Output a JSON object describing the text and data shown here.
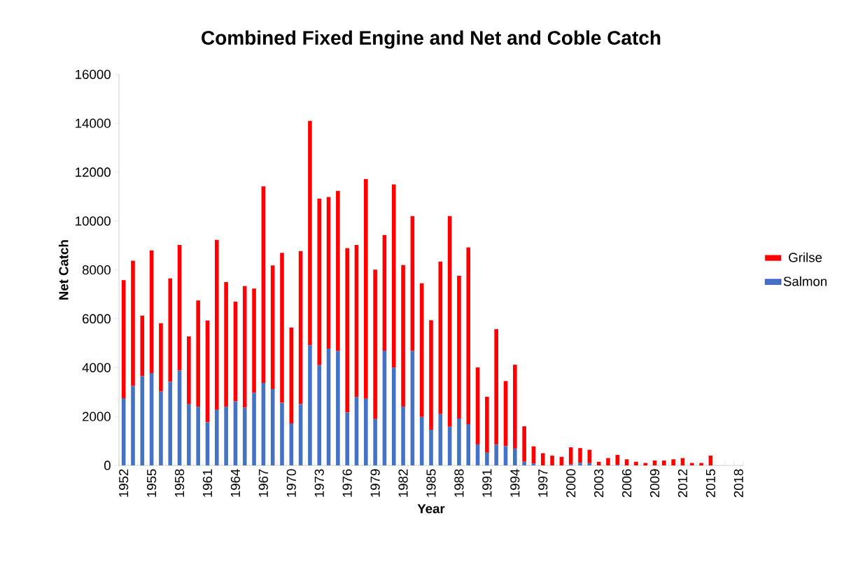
{
  "chart_data": {
    "type": "bar",
    "stacked": true,
    "title": "Combined Fixed Engine and Net and Coble Catch",
    "xlabel": "Year",
    "ylabel": "Net Catch",
    "categories": [
      "1952",
      null,
      null,
      "1955",
      null,
      null,
      "1958",
      null,
      null,
      "1961",
      null,
      null,
      "1964",
      null,
      null,
      "1967",
      null,
      null,
      "1970",
      null,
      null,
      "1973",
      null,
      null,
      "1976",
      null,
      null,
      "1979",
      null,
      null,
      "1982",
      null,
      null,
      "1985",
      null,
      null,
      "1988",
      null,
      null,
      "1991",
      null,
      null,
      "1994",
      null,
      null,
      "1997",
      null,
      null,
      "2000",
      null,
      null,
      "2003",
      null,
      null,
      "2006",
      null,
      null,
      "2009",
      null,
      null,
      "2012",
      null,
      null,
      "2015",
      null,
      null,
      "2018"
    ],
    "series": [
      {
        "name": "Salmon",
        "color": "#4472c4",
        "values": [
          2750,
          3250,
          3650,
          3780,
          3020,
          3420,
          3880,
          2500,
          2400,
          1760,
          2270,
          2400,
          2620,
          2360,
          2970,
          3380,
          3120,
          2560,
          1720,
          2510,
          4920,
          4100,
          4780,
          4680,
          2160,
          2800,
          2730,
          1900,
          4700,
          4000,
          2400,
          4680,
          1980,
          1460,
          2100,
          1580,
          1920,
          1690,
          860,
          520,
          850,
          790,
          690,
          150,
          80,
          0,
          0,
          0,
          40,
          110,
          90,
          0,
          0,
          30,
          0,
          0,
          0,
          0,
          0,
          0,
          0,
          0,
          0,
          0,
          null,
          null,
          null
        ]
      },
      {
        "name": "Grilse",
        "color": "#ff0000",
        "values": [
          4830,
          5130,
          2480,
          5020,
          2800,
          4230,
          5140,
          2780,
          4350,
          4170,
          6960,
          5100,
          4080,
          4980,
          4270,
          8040,
          5060,
          6140,
          3920,
          6260,
          9180,
          6820,
          6200,
          6550,
          6730,
          6220,
          8990,
          6110,
          4730,
          7500,
          5800,
          5520,
          5470,
          4480,
          6240,
          8620,
          5840,
          7230,
          3150,
          2290,
          4730,
          2660,
          3430,
          1450,
          700,
          500,
          400,
          350,
          700,
          600,
          550,
          150,
          300,
          400,
          250,
          150,
          100,
          200,
          200,
          250,
          300,
          100,
          100,
          400,
          null,
          null,
          null
        ]
      }
    ],
    "ylim": [
      0,
      16000
    ],
    "yticks": [
      0,
      2000,
      4000,
      6000,
      8000,
      10000,
      12000,
      14000,
      16000
    ],
    "legend": "right",
    "grid": false
  }
}
